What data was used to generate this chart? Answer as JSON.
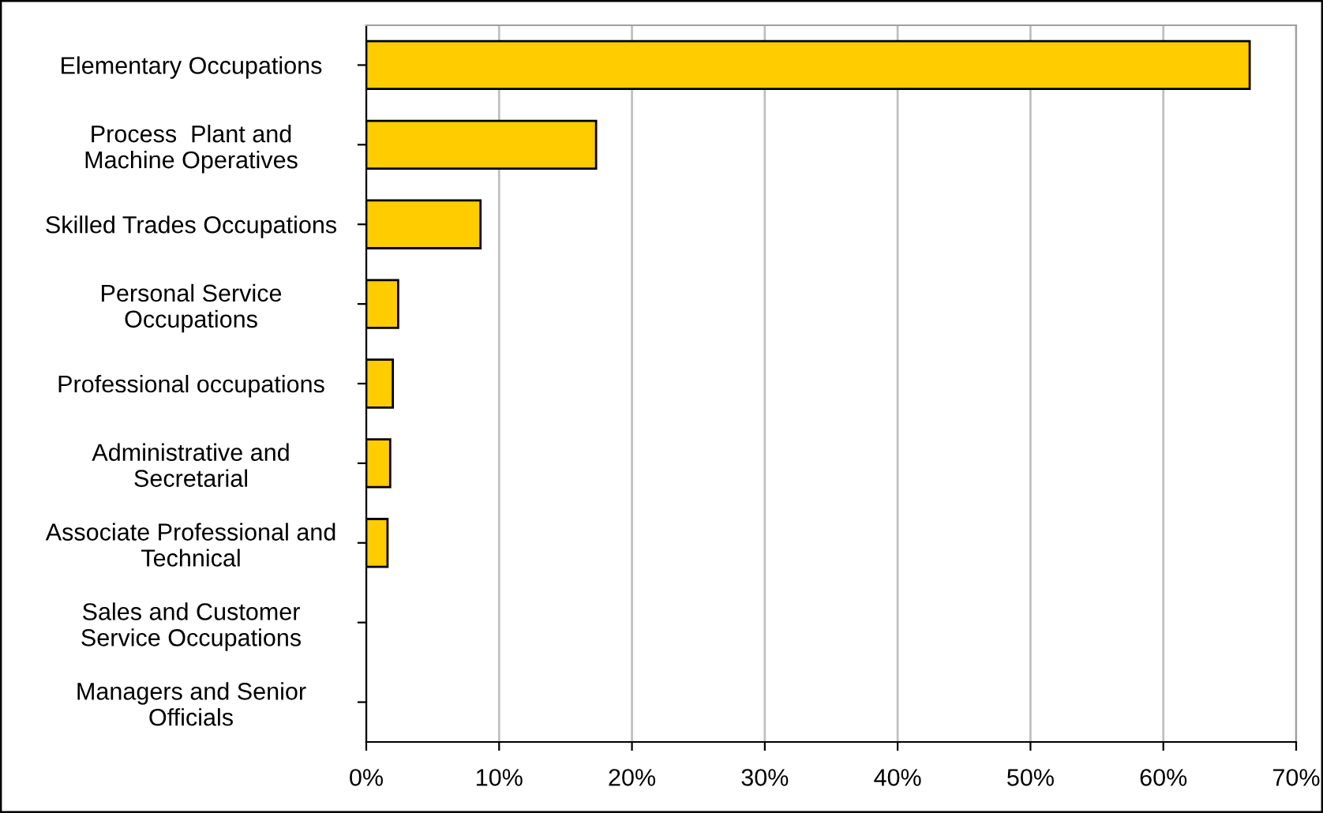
{
  "chart_data": {
    "type": "bar",
    "orientation": "horizontal",
    "categories": [
      "Elementary Occupations",
      "Process  Plant and\nMachine Operatives",
      "Skilled Trades Occupations",
      "Personal Service\nOccupations",
      "Professional occupations",
      "Administrative and\nSecretarial",
      "Associate Professional and\nTechnical",
      "Sales and Customer\nService Occupations",
      "Managers and Senior\nOfficials"
    ],
    "values": [
      66.5,
      17.3,
      8.6,
      2.4,
      2.0,
      1.8,
      1.6,
      0,
      0
    ],
    "color": "#ffcc00",
    "xlim": [
      0,
      70
    ],
    "xticks": [
      {
        "value": 0,
        "label": "0%"
      },
      {
        "value": 10,
        "label": "10%"
      },
      {
        "value": 20,
        "label": "20%"
      },
      {
        "value": 30,
        "label": "30%"
      },
      {
        "value": 40,
        "label": "40%"
      },
      {
        "value": 50,
        "label": "50%"
      },
      {
        "value": 60,
        "label": "60%"
      },
      {
        "value": 70,
        "label": "70%"
      }
    ],
    "grid": "x"
  }
}
